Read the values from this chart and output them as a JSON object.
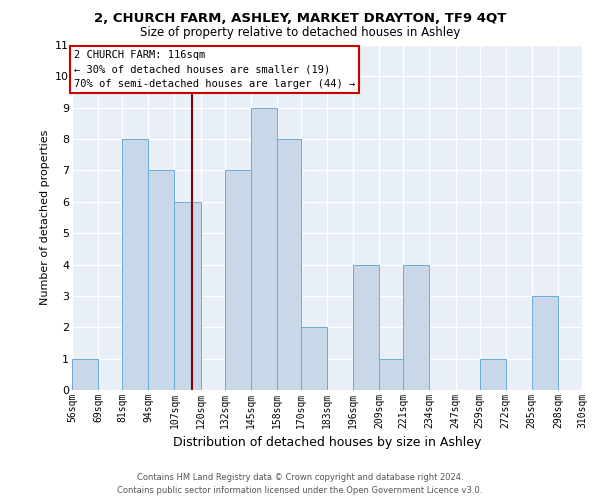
{
  "title1": "2, CHURCH FARM, ASHLEY, MARKET DRAYTON, TF9 4QT",
  "title2": "Size of property relative to detached houses in Ashley",
  "xlabel": "Distribution of detached houses by size in Ashley",
  "ylabel": "Number of detached properties",
  "bin_labels": [
    "56sqm",
    "69sqm",
    "81sqm",
    "94sqm",
    "107sqm",
    "120sqm",
    "132sqm",
    "145sqm",
    "158sqm",
    "170sqm",
    "183sqm",
    "196sqm",
    "209sqm",
    "221sqm",
    "234sqm",
    "247sqm",
    "259sqm",
    "272sqm",
    "285sqm",
    "298sqm",
    "310sqm"
  ],
  "bar_values": [
    1,
    0,
    8,
    7,
    6,
    0,
    7,
    9,
    8,
    2,
    0,
    4,
    1,
    4,
    0,
    0,
    1,
    0,
    3,
    0
  ],
  "bar_color": "#c8d8e8",
  "bar_edge_color": "#6aaad4",
  "vline_color": "#8b0000",
  "annotation_title": "2 CHURCH FARM: 116sqm",
  "annotation_line1": "← 30% of detached houses are smaller (19)",
  "annotation_line2": "70% of semi-detached houses are larger (44) →",
  "annotation_box_color": "#ffffff",
  "annotation_box_edge": "#cc0000",
  "ylim": [
    0,
    11
  ],
  "yticks": [
    0,
    1,
    2,
    3,
    4,
    5,
    6,
    7,
    8,
    9,
    10,
    11
  ],
  "footer1": "Contains HM Land Registry data © Crown copyright and database right 2024.",
  "footer2": "Contains public sector information licensed under the Open Government Licence v3.0.",
  "bin_edges": [
    56,
    69,
    81,
    94,
    107,
    120,
    132,
    145,
    158,
    170,
    183,
    196,
    209,
    221,
    234,
    247,
    259,
    272,
    285,
    298,
    310
  ],
  "vline_x_data": 116,
  "bg_color": "#e8eff6"
}
